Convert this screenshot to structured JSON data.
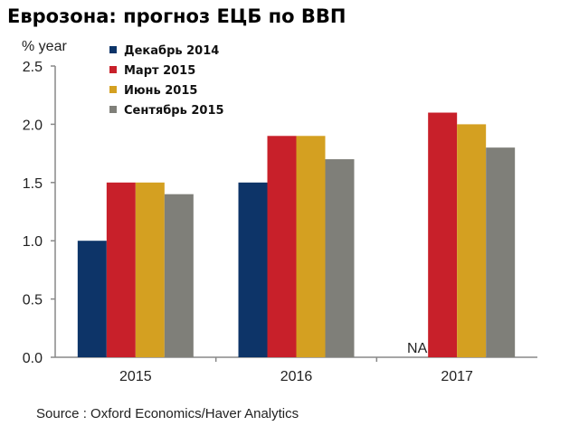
{
  "chart_data": {
    "type": "bar",
    "title": "Еврозона: прогноз ЕЦБ по ВВП",
    "ylabel": "% year",
    "xlabel": "",
    "ylim": [
      0,
      2.5
    ],
    "yticks": [
      "0.0",
      "0.5",
      "1.0",
      "1.5",
      "2.0",
      "2.5"
    ],
    "categories": [
      "2015",
      "2016",
      "2017"
    ],
    "series": [
      {
        "name": "Декабрь 2014",
        "color": "#0d3468",
        "values": [
          1.0,
          1.5,
          null
        ]
      },
      {
        "name": "Март 2015",
        "color": "#c8202a",
        "values": [
          1.5,
          1.9,
          2.1
        ]
      },
      {
        "name": "Июнь 2015",
        "color": "#d4a021",
        "values": [
          1.5,
          1.9,
          2.0
        ]
      },
      {
        "name": "Сентябрь 2015",
        "color": "#7f7f79",
        "values": [
          1.4,
          1.7,
          1.8
        ]
      }
    ],
    "na_label": "NA",
    "legend": "top-left",
    "grid": false,
    "source": "Source : Oxford Economics/Haver Analytics"
  }
}
